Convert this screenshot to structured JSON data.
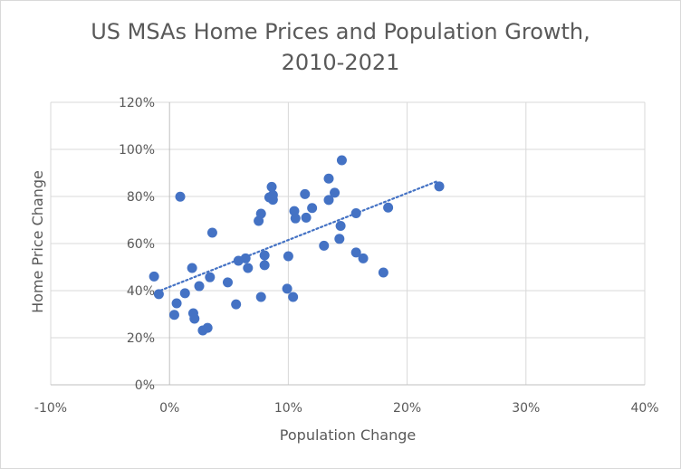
{
  "chart_data": {
    "type": "scatter",
    "title_line1": "US MSAs Home Prices and Population Growth,",
    "title_line2": "2010-2021",
    "xlabel": "Population Change",
    "ylabel": "Home Price Change",
    "xlim": [
      -10,
      40
    ],
    "ylim": [
      0,
      120
    ],
    "x_ticks": [
      -10,
      0,
      10,
      20,
      30,
      40
    ],
    "y_ticks": [
      0,
      20,
      40,
      60,
      80,
      100,
      120
    ],
    "x_tick_labels": [
      "-10%",
      "0%",
      "10%",
      "20%",
      "30%",
      "40%"
    ],
    "y_tick_labels": [
      "0%",
      "20%",
      "40%",
      "60%",
      "80%",
      "100%",
      "120%"
    ],
    "grid": true,
    "marker_color": "#4472c4",
    "trendline": {
      "style": "dotted linear",
      "x": [
        -1.1,
        22.6
      ],
      "y": [
        39.4,
        86.6
      ]
    },
    "series": [
      {
        "name": "MSAs",
        "points": [
          [
            -1.3,
            46.0
          ],
          [
            -0.9,
            38.5
          ],
          [
            0.4,
            29.7
          ],
          [
            0.6,
            34.6
          ],
          [
            0.9,
            79.9
          ],
          [
            1.3,
            38.9
          ],
          [
            1.9,
            49.6
          ],
          [
            2.0,
            30.4
          ],
          [
            2.1,
            28.1
          ],
          [
            2.5,
            41.9
          ],
          [
            2.8,
            23.1
          ],
          [
            3.2,
            24.2
          ],
          [
            3.4,
            45.7
          ],
          [
            3.6,
            64.6
          ],
          [
            4.9,
            43.5
          ],
          [
            5.6,
            34.2
          ],
          [
            5.8,
            52.7
          ],
          [
            6.4,
            53.7
          ],
          [
            6.6,
            49.6
          ],
          [
            7.5,
            69.6
          ],
          [
            7.7,
            72.7
          ],
          [
            7.7,
            37.3
          ],
          [
            8.0,
            55.0
          ],
          [
            8.0,
            50.8
          ],
          [
            8.4,
            79.6
          ],
          [
            8.6,
            84.1
          ],
          [
            8.7,
            80.6
          ],
          [
            8.7,
            78.6
          ],
          [
            9.9,
            40.8
          ],
          [
            10.0,
            54.6
          ],
          [
            10.4,
            37.3
          ],
          [
            10.5,
            73.8
          ],
          [
            10.6,
            70.7
          ],
          [
            11.4,
            81.0
          ],
          [
            11.5,
            71.0
          ],
          [
            12.0,
            75.1
          ],
          [
            13.0,
            59.1
          ],
          [
            13.4,
            87.6
          ],
          [
            13.4,
            78.5
          ],
          [
            13.9,
            81.6
          ],
          [
            14.3,
            62.0
          ],
          [
            14.4,
            67.5
          ],
          [
            14.5,
            95.4
          ],
          [
            15.7,
            72.9
          ],
          [
            15.7,
            56.2
          ],
          [
            16.3,
            53.7
          ],
          [
            18.0,
            47.7
          ],
          [
            18.4,
            75.3
          ],
          [
            22.7,
            84.3
          ]
        ]
      }
    ]
  }
}
